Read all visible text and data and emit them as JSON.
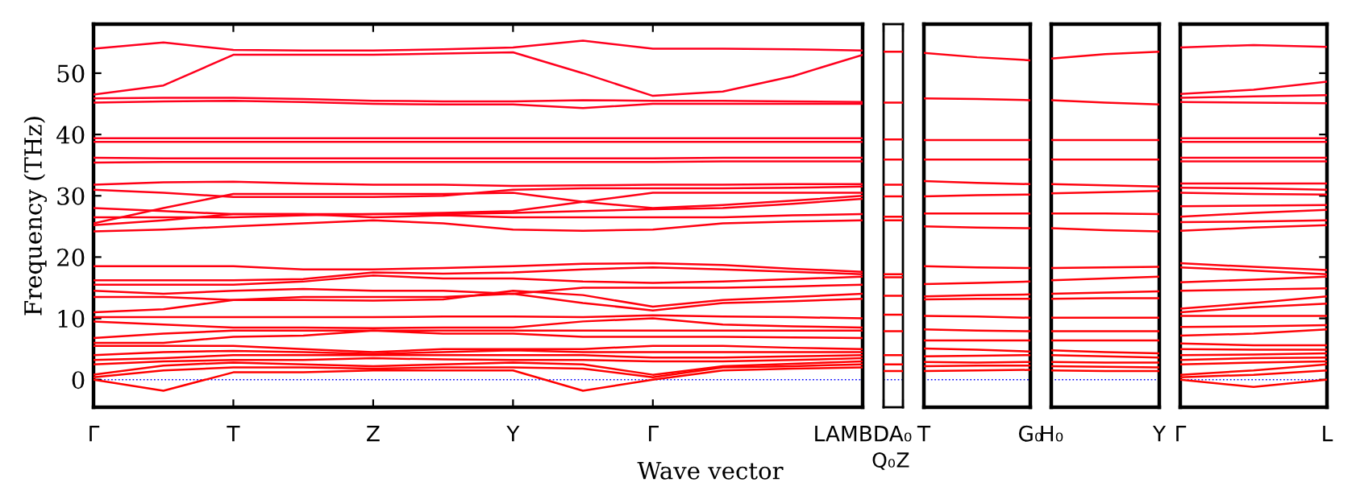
{
  "chart_data": [
    {
      "type": "line",
      "xlabel": "Wave vector",
      "ylabel": "Frequency (THz)",
      "categories": [
        "Γ",
        null,
        "T",
        null,
        "Z",
        null,
        "Y",
        null,
        "Γ",
        null,
        null,
        "LAMBDA₀"
      ],
      "ylim": [
        -4.5,
        58
      ],
      "yticks": [
        0,
        10,
        20,
        30,
        40,
        50
      ],
      "ref_lines": [
        {
          "axis": "y",
          "value": 0,
          "color": "#0000ff",
          "line_style": "dotted"
        }
      ],
      "line_style": "solid",
      "marker": "none",
      "series": [
        {
          "color": "#ff0000",
          "values": [
            0,
            -1.8,
            1.2,
            1.2,
            1.5,
            1.5,
            1.5,
            -1.8,
            0,
            1.5,
            1.8,
            2
          ]
        },
        {
          "color": "#ff0001",
          "values": [
            0.4,
            1.5,
            2.0,
            2.0,
            1.8,
            2.0,
            2.0,
            1.8,
            0.4,
            2.0,
            2.2,
            2.5
          ]
        },
        {
          "color": "#ff0002",
          "values": [
            0.8,
            2.3,
            2.8,
            2.5,
            2.2,
            2.5,
            2.8,
            2.5,
            0.8,
            2.2,
            2.6,
            3
          ]
        },
        {
          "color": "#ff0003",
          "values": [
            2.5,
            3,
            3.2,
            3.2,
            3.5,
            3.3,
            3.2,
            3.2,
            3,
            3,
            3.2,
            3.5
          ]
        },
        {
          "color": "#ff0004",
          "values": [
            3.2,
            3.5,
            4,
            4,
            4,
            4,
            4,
            4,
            3.6,
            3.6,
            3.8,
            4
          ]
        },
        {
          "color": "#ff0005",
          "values": [
            4,
            4.5,
            4.7,
            4.5,
            4.2,
            4.5,
            4.8,
            4.5,
            4.5,
            4.5,
            4.5,
            4.5
          ]
        },
        {
          "color": "#ff0006",
          "values": [
            5.5,
            5.5,
            5.5,
            5,
            4.5,
            5,
            5,
            5,
            5.5,
            5.5,
            5.2,
            5
          ]
        },
        {
          "color": "#ff0007",
          "values": [
            6,
            6,
            7,
            7.2,
            8,
            7.5,
            7.5,
            7,
            7,
            7,
            6.9,
            6.8
          ]
        },
        {
          "color": "#ff0008",
          "values": [
            6.8,
            7.5,
            8,
            8,
            8,
            8,
            8,
            8,
            8,
            8,
            8,
            8
          ]
        },
        {
          "color": "#ff0009",
          "values": [
            9.5,
            9,
            8.5,
            8.5,
            8.4,
            8.5,
            8.5,
            9.5,
            10,
            9,
            8.7,
            8.5
          ]
        },
        {
          "color": "#ff000a",
          "values": [
            10.2,
            10.2,
            10.2,
            10.2,
            10.2,
            10.3,
            10.3,
            10.2,
            10.5,
            10.3,
            10.2,
            10
          ]
        },
        {
          "color": "#ff000b",
          "values": [
            11,
            11.5,
            13,
            13.5,
            13.5,
            13.5,
            14,
            12.5,
            11.3,
            12.5,
            12.8,
            13.2
          ]
        },
        {
          "color": "#ff000c",
          "values": [
            13.5,
            13.5,
            13,
            13,
            12.9,
            13.1,
            14.5,
            13.8,
            11.9,
            13,
            13.5,
            14
          ]
        },
        {
          "color": "#ff000d",
          "values": [
            14.5,
            14,
            14.5,
            14.8,
            14.5,
            14.5,
            14,
            15,
            15,
            15,
            15.2,
            15.5
          ]
        },
        {
          "color": "#ff000e",
          "values": [
            15.5,
            15.5,
            15.5,
            16,
            17,
            16.5,
            16.5,
            16,
            15.8,
            16,
            16.4,
            16.8
          ]
        },
        {
          "color": "#ff000f",
          "values": [
            16.2,
            16.2,
            16.2,
            16.4,
            17.5,
            17.3,
            17.5,
            18,
            18.3,
            18,
            17.6,
            17.2
          ]
        },
        {
          "color": "#ff0010",
          "values": [
            18.5,
            18.5,
            18.5,
            18,
            18,
            18.2,
            18.5,
            18.9,
            19,
            18.7,
            18.1,
            17.6
          ]
        },
        {
          "color": "#ff0011",
          "values": [
            24.2,
            24.5,
            25,
            25.5,
            26,
            25.5,
            24.5,
            24.3,
            24.5,
            25.5,
            25.8,
            26
          ]
        },
        {
          "color": "#ff0012",
          "values": [
            25.2,
            26,
            27,
            27,
            26.5,
            26.8,
            26.5,
            26.5,
            26.5,
            26.5,
            26.8,
            27
          ]
        },
        {
          "color": "#ff0013",
          "values": [
            26.5,
            26.5,
            26.5,
            26.8,
            27,
            27,
            27.2,
            27.5,
            27.8,
            28,
            28.7,
            29.5
          ]
        },
        {
          "color": "#ff0014",
          "values": [
            25.5,
            28,
            30.3,
            30.3,
            30.3,
            30.3,
            30.5,
            29,
            28,
            28.5,
            29.2,
            30
          ]
        },
        {
          "color": "#ff0015",
          "values": [
            28,
            27.5,
            27,
            27,
            27,
            27.2,
            27.5,
            29,
            30.5,
            30.5,
            30.5,
            30.5
          ]
        },
        {
          "color": "#ff0016",
          "values": [
            31,
            30.5,
            29.8,
            29.8,
            29.8,
            30,
            31,
            31.2,
            31.2,
            31.2,
            31.3,
            31.5
          ]
        },
        {
          "color": "#ff0017",
          "values": [
            31.8,
            32.2,
            32.3,
            32,
            31.8,
            31.8,
            31.6,
            31.7,
            31.8,
            31.8,
            31.9,
            31.9
          ]
        },
        {
          "color": "#ff0018",
          "values": [
            35.4,
            35.5,
            35.5,
            35.5,
            35.5,
            35.5,
            35.5,
            35.5,
            35.5,
            35.6,
            35.6,
            35.6
          ]
        },
        {
          "color": "#ff0019",
          "values": [
            36.2,
            36.1,
            36.1,
            36.1,
            36.1,
            36.1,
            36.1,
            36.1,
            36.1,
            36.2,
            36.2,
            36.2
          ]
        },
        {
          "color": "#ff001a",
          "values": [
            38.8,
            38.8,
            38.8,
            38.8,
            38.8,
            38.8,
            38.8,
            38.8,
            38.8,
            38.8,
            38.8,
            38.8
          ]
        },
        {
          "color": "#ff001b",
          "values": [
            39.4,
            39.4,
            39.4,
            39.4,
            39.4,
            39.4,
            39.4,
            39.4,
            39.4,
            39.4,
            39.4,
            39.4
          ]
        },
        {
          "color": "#ff001c",
          "values": [
            45.2,
            45.4,
            45.5,
            45.3,
            45,
            44.9,
            44.9,
            44.3,
            45,
            45,
            45,
            45
          ]
        },
        {
          "color": "#ff001d",
          "values": [
            45.9,
            46,
            46,
            45.8,
            45.5,
            45.4,
            45.4,
            45.6,
            45.5,
            45.5,
            45.4,
            45.3
          ]
        },
        {
          "color": "#ff001e",
          "values": [
            46.5,
            48,
            53,
            53,
            53,
            53.2,
            53.4,
            50,
            46.3,
            47,
            49.5,
            53
          ]
        },
        {
          "color": "#ff001f",
          "values": [
            54,
            55,
            53.8,
            53.7,
            53.7,
            53.9,
            54.2,
            55.3,
            54,
            54,
            53.9,
            53.7
          ]
        }
      ]
    },
    {
      "type": "line",
      "categories": [
        "Q₀",
        "Z"
      ],
      "ylim": [
        -4.5,
        58
      ],
      "tick_labels": "x",
      "ref_lines": [
        {
          "axis": "y",
          "value": 0,
          "color": "#0000ff",
          "line_style": "dotted"
        }
      ],
      "line_style": "solid",
      "marker": "none",
      "series": [
        {
          "color": "#ff0100",
          "values": [
            1.4,
            1.4
          ]
        },
        {
          "color": "#ff0101",
          "values": [
            2.5,
            2.5
          ]
        },
        {
          "color": "#ff0102",
          "values": [
            4,
            4
          ]
        },
        {
          "color": "#ff0103",
          "values": [
            7.9,
            7.9
          ]
        },
        {
          "color": "#ff0104",
          "values": [
            10.6,
            10.6
          ]
        },
        {
          "color": "#ff0105",
          "values": [
            13.7,
            13.7
          ]
        },
        {
          "color": "#ff0106",
          "values": [
            16.7,
            16.7
          ]
        },
        {
          "color": "#ff0107",
          "values": [
            17.2,
            17.2
          ]
        },
        {
          "color": "#ff0108",
          "values": [
            26,
            26
          ]
        },
        {
          "color": "#ff0109",
          "values": [
            26.6,
            26.6
          ]
        },
        {
          "color": "#ff010a",
          "values": [
            29.9,
            29.9
          ]
        },
        {
          "color": "#ff010b",
          "values": [
            31.8,
            31.8
          ]
        },
        {
          "color": "#ff010c",
          "values": [
            35.9,
            35.9
          ]
        },
        {
          "color": "#ff010d",
          "values": [
            39.2,
            39.2
          ]
        },
        {
          "color": "#ff010e",
          "values": [
            45.2,
            45.2
          ]
        },
        {
          "color": "#ff010f",
          "values": [
            53.5,
            53.5
          ]
        }
      ]
    },
    {
      "type": "line",
      "categories": [
        "T",
        null,
        "G₀"
      ],
      "ylim": [
        -4.5,
        58
      ],
      "tick_labels": "x",
      "ref_lines": [
        {
          "axis": "y",
          "value": 0,
          "color": "#0000ff",
          "line_style": "dotted"
        }
      ],
      "line_style": "solid",
      "marker": "none",
      "series": [
        {
          "color": "#ff0200",
          "values": [
            1.4,
            1.5,
            1.6
          ]
        },
        {
          "color": "#ff0201",
          "values": [
            2.2,
            2.3,
            2.3
          ]
        },
        {
          "color": "#ff0202",
          "values": [
            2.9,
            2.8,
            2.9
          ]
        },
        {
          "color": "#ff0203",
          "values": [
            3.8,
            3.9,
            4.0
          ]
        },
        {
          "color": "#ff0204",
          "values": [
            5.1,
            4.9,
            4.6
          ]
        },
        {
          "color": "#ff0205",
          "values": [
            6.4,
            6.4,
            6.4
          ]
        },
        {
          "color": "#ff0206",
          "values": [
            8.2,
            8.0,
            7.9
          ]
        },
        {
          "color": "#ff0207",
          "values": [
            10.4,
            10.3,
            10.1
          ]
        },
        {
          "color": "#ff0208",
          "values": [
            13.1,
            13.2,
            13.2
          ]
        },
        {
          "color": "#ff0209",
          "values": [
            13.6,
            13.8,
            13.9
          ]
        },
        {
          "color": "#ff020a",
          "values": [
            15.6,
            15.8,
            16.0
          ]
        },
        {
          "color": "#ff020b",
          "values": [
            18.5,
            18.3,
            18.2
          ]
        },
        {
          "color": "#ff020c",
          "values": [
            25,
            24.8,
            24.7
          ]
        },
        {
          "color": "#ff020d",
          "values": [
            27.1,
            27.1,
            27.1
          ]
        },
        {
          "color": "#ff020e",
          "values": [
            29.9,
            30.1,
            30.2
          ]
        },
        {
          "color": "#ff020f",
          "values": [
            32.4,
            32.1,
            31.9
          ]
        },
        {
          "color": "#ff0210",
          "values": [
            35.9,
            35.9,
            35.9
          ]
        },
        {
          "color": "#ff0211",
          "values": [
            39.1,
            39.1,
            39.1
          ]
        },
        {
          "color": "#ff0212",
          "values": [
            45.9,
            45.8,
            45.6
          ]
        },
        {
          "color": "#ff0213",
          "values": [
            53.3,
            52.6,
            52.1
          ]
        }
      ]
    },
    {
      "type": "line",
      "categories": [
        "H₀",
        null,
        "Y"
      ],
      "ylim": [
        -4.5,
        58
      ],
      "tick_labels": "x",
      "ref_lines": [
        {
          "axis": "y",
          "value": 0,
          "color": "#0000ff",
          "line_style": "dotted"
        }
      ],
      "line_style": "solid",
      "marker": "none",
      "series": [
        {
          "color": "#ff0300",
          "values": [
            1.5,
            1.4,
            1.4
          ]
        },
        {
          "color": "#ff0301",
          "values": [
            2.2,
            2.1,
            2.0
          ]
        },
        {
          "color": "#ff0302",
          "values": [
            2.9,
            2.8,
            2.8
          ]
        },
        {
          "color": "#ff0303",
          "values": [
            4.0,
            3.8,
            3.6
          ]
        },
        {
          "color": "#ff0304",
          "values": [
            4.8,
            4.5,
            4.3
          ]
        },
        {
          "color": "#ff0305",
          "values": [
            6.4,
            6.4,
            6.4
          ]
        },
        {
          "color": "#ff0306",
          "values": [
            7.9,
            7.9,
            7.9
          ]
        },
        {
          "color": "#ff0307",
          "values": [
            10.1,
            10.1,
            10.1
          ]
        },
        {
          "color": "#ff0308",
          "values": [
            13.2,
            13.3,
            13.3
          ]
        },
        {
          "color": "#ff0309",
          "values": [
            14,
            14.2,
            14.4
          ]
        },
        {
          "color": "#ff030a",
          "values": [
            16.2,
            16.5,
            16.8
          ]
        },
        {
          "color": "#ff030b",
          "values": [
            18.2,
            18.3,
            18.4
          ]
        },
        {
          "color": "#ff030c",
          "values": [
            24.7,
            24.4,
            24.2
          ]
        },
        {
          "color": "#ff030d",
          "values": [
            27.1,
            27.1,
            27
          ]
        },
        {
          "color": "#ff030e",
          "values": [
            30.4,
            30.6,
            30.8
          ]
        },
        {
          "color": "#ff030f",
          "values": [
            31.9,
            31.7,
            31.5
          ]
        },
        {
          "color": "#ff0310",
          "values": [
            35.9,
            35.9,
            35.9
          ]
        },
        {
          "color": "#ff0311",
          "values": [
            39.1,
            39.1,
            39.1
          ]
        },
        {
          "color": "#ff0312",
          "values": [
            45.6,
            45.2,
            44.9
          ]
        },
        {
          "color": "#ff0313",
          "values": [
            52.4,
            53.1,
            53.5
          ]
        }
      ]
    },
    {
      "type": "line",
      "categories": [
        "Γ",
        null,
        "L"
      ],
      "ylim": [
        -4.5,
        58
      ],
      "yticks": [
        0,
        10,
        20,
        30,
        40,
        50
      ],
      "tick_labels": "x",
      "ref_lines": [
        {
          "axis": "y",
          "value": 0,
          "color": "#0000ff",
          "line_style": "dotted"
        }
      ],
      "line_style": "solid",
      "marker": "none",
      "series": [
        {
          "color": "#ff0400",
          "values": [
            0,
            -1.2,
            0
          ]
        },
        {
          "color": "#ff0401",
          "values": [
            0.4,
            0.8,
            1.5
          ]
        },
        {
          "color": "#ff0402",
          "values": [
            0.8,
            1.5,
            2.5
          ]
        },
        {
          "color": "#ff0403",
          "values": [
            2.5,
            2.8,
            3
          ]
        },
        {
          "color": "#ff0404",
          "values": [
            3.2,
            3.5,
            3.6
          ]
        },
        {
          "color": "#ff0405",
          "values": [
            4,
            4.1,
            4.3
          ]
        },
        {
          "color": "#ff0406",
          "values": [
            5,
            4.9,
            4.9
          ]
        },
        {
          "color": "#ff0407",
          "values": [
            5.9,
            5.6,
            5.6
          ]
        },
        {
          "color": "#ff0408",
          "values": [
            7.2,
            7.5,
            8.2
          ]
        },
        {
          "color": "#ff0409",
          "values": [
            8.6,
            8.7,
            8.9
          ]
        },
        {
          "color": "#ff040a",
          "values": [
            10.4,
            10.4,
            10.4
          ]
        },
        {
          "color": "#ff040b",
          "values": [
            11,
            11.8,
            12.4
          ]
        },
        {
          "color": "#ff040c",
          "values": [
            11.6,
            12.5,
            13.6
          ]
        },
        {
          "color": "#ff040d",
          "values": [
            14.5,
            14.7,
            14.9
          ]
        },
        {
          "color": "#ff040e",
          "values": [
            15.9,
            16.3,
            16.8
          ]
        },
        {
          "color": "#ff040f",
          "values": [
            18.3,
            17.8,
            17.2
          ]
        },
        {
          "color": "#ff0410",
          "values": [
            19,
            18.4,
            17.9
          ]
        },
        {
          "color": "#ff0411",
          "values": [
            24.3,
            24.8,
            25.2
          ]
        },
        {
          "color": "#ff0412",
          "values": [
            25.7,
            25.8,
            26
          ]
        },
        {
          "color": "#ff0413",
          "values": [
            26.6,
            27.2,
            27.7
          ]
        },
        {
          "color": "#ff0414",
          "values": [
            28.3,
            28.4,
            28.5
          ]
        },
        {
          "color": "#ff0415",
          "values": [
            30.5,
            30.3,
            30.2
          ]
        },
        {
          "color": "#ff0416",
          "values": [
            31.3,
            31.2,
            31
          ]
        },
        {
          "color": "#ff0417",
          "values": [
            32,
            32,
            32
          ]
        },
        {
          "color": "#ff0418",
          "values": [
            35.6,
            35.6,
            35.6
          ]
        },
        {
          "color": "#ff0419",
          "values": [
            36.2,
            36.2,
            36.2
          ]
        },
        {
          "color": "#ff041a",
          "values": [
            38.8,
            38.8,
            38.8
          ]
        },
        {
          "color": "#ff041b",
          "values": [
            39.4,
            39.4,
            39.4
          ]
        },
        {
          "color": "#ff041c",
          "values": [
            45.3,
            45.2,
            45.1
          ]
        },
        {
          "color": "#ff041d",
          "values": [
            46,
            46.2,
            46.4
          ]
        },
        {
          "color": "#ff041e",
          "values": [
            46.6,
            47.3,
            48.6
          ]
        },
        {
          "color": "#ff041f",
          "values": [
            54.2,
            54.6,
            54.3
          ]
        }
      ]
    }
  ]
}
